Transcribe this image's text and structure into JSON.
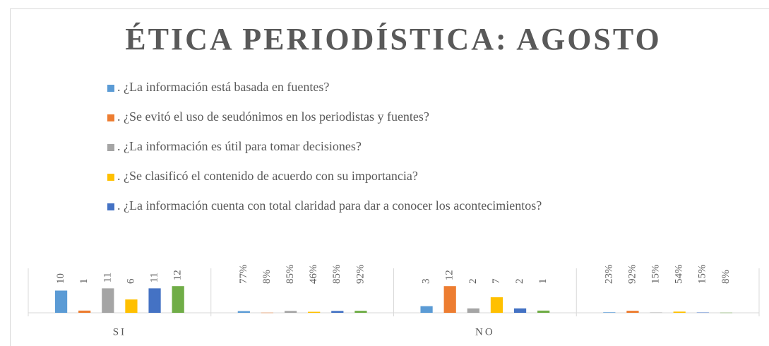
{
  "chart_data": {
    "type": "bar",
    "title": "ÉTICA PERIODÍSTICA: AGOSTO",
    "categories": [
      "SI",
      null,
      "NO",
      null
    ],
    "ylim": [
      0,
      20
    ],
    "legend": "top",
    "series": [
      {
        "name": ". ¿La información está basada en fuentes?",
        "color": "#5b9bd5",
        "values": [
          10,
          0.77,
          3,
          0.23
        ],
        "value_labels": [
          "10",
          "77%",
          "3",
          "23%"
        ]
      },
      {
        "name": ". ¿Se evitó el uso de seudónimos en los periodistas y fuentes?",
        "color": "#ed7d31",
        "values": [
          1,
          0.08,
          12,
          0.92
        ],
        "value_labels": [
          "1",
          "8%",
          "12",
          "92%"
        ]
      },
      {
        "name": ". ¿La información es útil para tomar decisiones?",
        "color": "#a5a5a5",
        "values": [
          11,
          0.85,
          2,
          0.15
        ],
        "value_labels": [
          "11",
          "85%",
          "2",
          "15%"
        ]
      },
      {
        "name": ". ¿Se clasificó el contenido de acuerdo con su importancia?",
        "color": "#ffc000",
        "values": [
          6,
          0.46,
          7,
          0.54
        ],
        "value_labels": [
          "6",
          "46%",
          "7",
          "54%"
        ]
      },
      {
        "name": ". ¿La información cuenta con total claridad para dar a conocer los acontecimientos?",
        "color": "#4472c4",
        "values": [
          11,
          0.85,
          2,
          0.15
        ],
        "value_labels": [
          "11",
          "85%",
          "2",
          "15%"
        ]
      },
      {
        "color": "#70ad47",
        "values": [
          12,
          0.92,
          1,
          0.08
        ],
        "value_labels": [
          "12",
          "92%",
          "1",
          "8%"
        ]
      }
    ]
  }
}
